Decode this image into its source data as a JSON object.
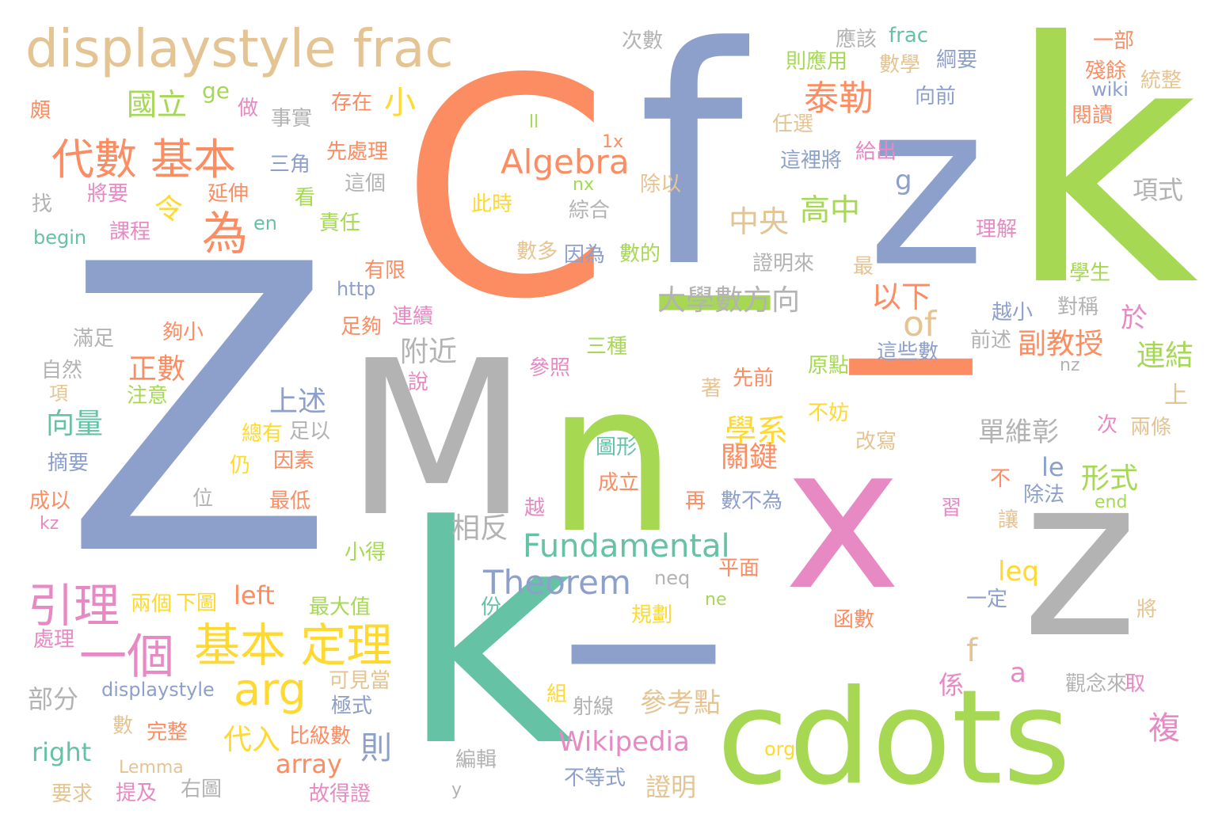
{
  "words": [
    {
      "text": "C",
      "color": "#fc8d62"
    },
    {
      "text": "f",
      "color": "#8da0cb"
    },
    {
      "text": "z",
      "color": "#8da0cb"
    },
    {
      "text": "k",
      "color": "#a6d854"
    },
    {
      "text": "displaystyle frac",
      "color": "#e5c494"
    },
    {
      "text": "Z",
      "color": "#8da0cb"
    },
    {
      "text": "M",
      "color": "#b3b3b3"
    },
    {
      "text": "n",
      "color": "#a6d854"
    },
    {
      "text": "_",
      "color": "#a6d854"
    },
    {
      "text": "_",
      "color": "#fc8d62"
    },
    {
      "text": "x",
      "color": "#e78ac3"
    },
    {
      "text": "z",
      "color": "#b3b3b3"
    },
    {
      "text": "k",
      "color": "#66c2a5"
    },
    {
      "text": "_",
      "color": "#8da0cb"
    },
    {
      "text": "cdots",
      "color": "#a6d854"
    },
    {
      "text": "代數 基本",
      "color": "#fc8d62"
    },
    {
      "text": "為",
      "color": "#fc8d62"
    },
    {
      "text": "國立",
      "color": "#a6d854"
    },
    {
      "text": "ge",
      "color": "#a6d854"
    },
    {
      "text": "小",
      "color": "#ffd92f"
    },
    {
      "text": "泰勒",
      "color": "#fc8d62"
    },
    {
      "text": "Algebra",
      "color": "#fc8d62"
    },
    {
      "text": "中央",
      "color": "#e5c494"
    },
    {
      "text": "高中",
      "color": "#a6d854"
    },
    {
      "text": "大學數方向",
      "color": "#b3b3b3"
    },
    {
      "text": "of",
      "color": "#e5c494"
    },
    {
      "text": "以下",
      "color": "#fc8d62"
    },
    {
      "text": "副教授",
      "color": "#fc8d62"
    },
    {
      "text": "連結",
      "color": "#a6d854"
    },
    {
      "text": "項式",
      "color": "#b3b3b3"
    },
    {
      "text": "附近",
      "color": "#b3b3b3"
    },
    {
      "text": "正數",
      "color": "#fc8d62"
    },
    {
      "text": "上述",
      "color": "#8da0cb"
    },
    {
      "text": "向量",
      "color": "#66c2a5"
    },
    {
      "text": "學系",
      "color": "#ffd92f"
    },
    {
      "text": "關鍵",
      "color": "#fc8d62"
    },
    {
      "text": "單維彰",
      "color": "#b3b3b3"
    },
    {
      "text": "形式",
      "color": "#a6d854"
    },
    {
      "text": "Fundamental",
      "color": "#66c2a5"
    },
    {
      "text": "Theorem",
      "color": "#8da0cb"
    },
    {
      "text": "相反",
      "color": "#b3b3b3"
    },
    {
      "text": "引理",
      "color": "#e78ac3"
    },
    {
      "text": "一個",
      "color": "#e78ac3"
    },
    {
      "text": "基本 定理",
      "color": "#ffd92f"
    },
    {
      "text": "arg",
      "color": "#ffd92f"
    },
    {
      "text": "left",
      "color": "#fc8d62"
    },
    {
      "text": "參考點",
      "color": "#e5c494"
    },
    {
      "text": "Wikipedia",
      "color": "#e78ac3"
    },
    {
      "text": "right",
      "color": "#66c2a5"
    },
    {
      "text": "array",
      "color": "#fc8d62"
    },
    {
      "text": "則",
      "color": "#8da0cb"
    },
    {
      "text": "代入",
      "color": "#ffd92f"
    },
    {
      "text": "證明",
      "color": "#e5c494"
    },
    {
      "text": "複",
      "color": "#e78ac3"
    },
    {
      "text": "係",
      "color": "#e78ac3"
    },
    {
      "text": "a",
      "color": "#e78ac3"
    },
    {
      "text": "leq",
      "color": "#ffd92f"
    },
    {
      "text": "le",
      "color": "#8da0cb"
    },
    {
      "text": "f",
      "color": "#e5c494"
    },
    {
      "text": "g",
      "color": "#8da0cb"
    },
    {
      "text": "令",
      "color": "#ffd92f"
    },
    {
      "text": "次數",
      "color": "#b3b3b3"
    },
    {
      "text": "應該",
      "color": "#b3b3b3"
    },
    {
      "text": "frac",
      "color": "#66c2a5"
    },
    {
      "text": "一部",
      "color": "#fc8d62"
    },
    {
      "text": "則應用",
      "color": "#a6d854"
    },
    {
      "text": "數學",
      "color": "#e5c494"
    },
    {
      "text": "綱要",
      "color": "#8da0cb"
    },
    {
      "text": "殘餘",
      "color": "#fc8d62"
    },
    {
      "text": "統整",
      "color": "#e5c494"
    },
    {
      "text": "wiki",
      "color": "#8da0cb"
    },
    {
      "text": "向前",
      "color": "#8da0cb"
    },
    {
      "text": "閱讀",
      "color": "#fc8d62"
    },
    {
      "text": "任選",
      "color": "#e5c494"
    },
    {
      "text": "給出",
      "color": "#e78ac3"
    },
    {
      "text": "這裡將",
      "color": "#8da0cb"
    },
    {
      "text": "存在",
      "color": "#fc8d62"
    },
    {
      "text": "做",
      "color": "#e78ac3"
    },
    {
      "text": "事實",
      "color": "#b3b3b3"
    },
    {
      "text": "頗",
      "color": "#fc8d62"
    },
    {
      "text": "ll",
      "color": "#a6d854"
    },
    {
      "text": "1x",
      "color": "#fc8d62"
    },
    {
      "text": "nx",
      "color": "#a6d854"
    },
    {
      "text": "除以",
      "color": "#e5c494"
    },
    {
      "text": "此時",
      "color": "#ffd92f"
    },
    {
      "text": "綜合",
      "color": "#b3b3b3"
    },
    {
      "text": "三角",
      "color": "#8da0cb"
    },
    {
      "text": "先處理",
      "color": "#fc8d62"
    },
    {
      "text": "這個",
      "color": "#b3b3b3"
    },
    {
      "text": "延伸",
      "color": "#fc8d62"
    },
    {
      "text": "看",
      "color": "#a6d854"
    },
    {
      "text": "將要",
      "color": "#e78ac3"
    },
    {
      "text": "找",
      "color": "#b3b3b3"
    },
    {
      "text": "begin",
      "color": "#66c2a5"
    },
    {
      "text": "課程",
      "color": "#e78ac3"
    },
    {
      "text": "en",
      "color": "#66c2a5"
    },
    {
      "text": "責任",
      "color": "#a6d854"
    },
    {
      "text": "數多",
      "color": "#e5c494"
    },
    {
      "text": "因為",
      "color": "#8da0cb"
    },
    {
      "text": "數的",
      "color": "#a6d854"
    },
    {
      "text": "證明來",
      "color": "#b3b3b3"
    },
    {
      "text": "最",
      "color": "#e5c494"
    },
    {
      "text": "理解",
      "color": "#e78ac3"
    },
    {
      "text": "學生",
      "color": "#a6d854"
    },
    {
      "text": "對稱",
      "color": "#b3b3b3"
    },
    {
      "text": "越小",
      "color": "#8da0cb"
    },
    {
      "text": "前述",
      "color": "#b3b3b3"
    },
    {
      "text": "於",
      "color": "#e78ac3"
    },
    {
      "text": "這些數",
      "color": "#8da0cb"
    },
    {
      "text": "nz",
      "color": "#b3b3b3"
    },
    {
      "text": "有限",
      "color": "#fc8d62"
    },
    {
      "text": "http",
      "color": "#8da0cb"
    },
    {
      "text": "連續",
      "color": "#e78ac3"
    },
    {
      "text": "足夠",
      "color": "#fc8d62"
    },
    {
      "text": "滿足",
      "color": "#b3b3b3"
    },
    {
      "text": "夠小",
      "color": "#fc8d62"
    },
    {
      "text": "自然",
      "color": "#b3b3b3"
    },
    {
      "text": "項",
      "color": "#e5c494"
    },
    {
      "text": "注意",
      "color": "#a6d854"
    },
    {
      "text": "說",
      "color": "#e78ac3"
    },
    {
      "text": "參照",
      "color": "#e78ac3"
    },
    {
      "text": "三種",
      "color": "#a6d854"
    },
    {
      "text": "原點",
      "color": "#a6d854"
    },
    {
      "text": "先前",
      "color": "#fc8d62"
    },
    {
      "text": "著",
      "color": "#e5c494"
    },
    {
      "text": "不妨",
      "color": "#ffd92f"
    },
    {
      "text": "上",
      "color": "#e5c494"
    },
    {
      "text": "次",
      "color": "#e78ac3"
    },
    {
      "text": "兩條",
      "color": "#e5c494"
    },
    {
      "text": "改寫",
      "color": "#e5c494"
    },
    {
      "text": "總有",
      "color": "#ffd92f"
    },
    {
      "text": "足以",
      "color": "#b3b3b3"
    },
    {
      "text": "因素",
      "color": "#fc8d62"
    },
    {
      "text": "仍",
      "color": "#ffd92f"
    },
    {
      "text": "摘要",
      "color": "#8da0cb"
    },
    {
      "text": "圖形",
      "color": "#66c2a5"
    },
    {
      "text": "成立",
      "color": "#fc8d62"
    },
    {
      "text": "再",
      "color": "#fc8d62"
    },
    {
      "text": "數不為",
      "color": "#8da0cb"
    },
    {
      "text": "不",
      "color": "#fc8d62"
    },
    {
      "text": "除法",
      "color": "#8da0cb"
    },
    {
      "text": "end",
      "color": "#a6d854"
    },
    {
      "text": "成以",
      "color": "#fc8d62"
    },
    {
      "text": "kz",
      "color": "#e78ac3"
    },
    {
      "text": "位",
      "color": "#b3b3b3"
    },
    {
      "text": "最低",
      "color": "#fc8d62"
    },
    {
      "text": "越",
      "color": "#e78ac3"
    },
    {
      "text": "習",
      "color": "#e78ac3"
    },
    {
      "text": "讓",
      "color": "#e5c494"
    },
    {
      "text": "小得",
      "color": "#a6d854"
    },
    {
      "text": "neq",
      "color": "#b3b3b3"
    },
    {
      "text": "平面",
      "color": "#fc8d62"
    },
    {
      "text": "一定",
      "color": "#8da0cb"
    },
    {
      "text": "將",
      "color": "#e5c494"
    },
    {
      "text": "兩個",
      "color": "#ffd92f"
    },
    {
      "text": "下圖",
      "color": "#ffd92f"
    },
    {
      "text": "最大值",
      "color": "#a6d854"
    },
    {
      "text": "份",
      "color": "#66c2a5"
    },
    {
      "text": "規劃",
      "color": "#ffd92f"
    },
    {
      "text": "ne",
      "color": "#a6d854"
    },
    {
      "text": "函數",
      "color": "#fc8d62"
    },
    {
      "text": "處理",
      "color": "#e78ac3"
    },
    {
      "text": "部分",
      "color": "#b3b3b3"
    },
    {
      "text": "displaystyle",
      "color": "#8da0cb"
    },
    {
      "text": "可見當",
      "color": "#e5c494"
    },
    {
      "text": "極式",
      "color": "#8da0cb"
    },
    {
      "text": "組",
      "color": "#ffd92f"
    },
    {
      "text": "射線",
      "color": "#b3b3b3"
    },
    {
      "text": "觀念來",
      "color": "#b3b3b3"
    },
    {
      "text": "取",
      "color": "#e78ac3"
    },
    {
      "text": "數",
      "color": "#e5c494"
    },
    {
      "text": "完整",
      "color": "#fc8d62"
    },
    {
      "text": "比級數",
      "color": "#fc8d62"
    },
    {
      "text": "org",
      "color": "#ffd92f"
    },
    {
      "text": "Lemma",
      "color": "#e5c494"
    },
    {
      "text": "編輯",
      "color": "#b3b3b3"
    },
    {
      "text": "不等式",
      "color": "#8da0cb"
    },
    {
      "text": "要求",
      "color": "#e5c494"
    },
    {
      "text": "提及",
      "color": "#e78ac3"
    },
    {
      "text": "右圖",
      "color": "#b3b3b3"
    },
    {
      "text": "故得證",
      "color": "#e78ac3"
    },
    {
      "text": "y",
      "color": "#b3b3b3"
    }
  ]
}
